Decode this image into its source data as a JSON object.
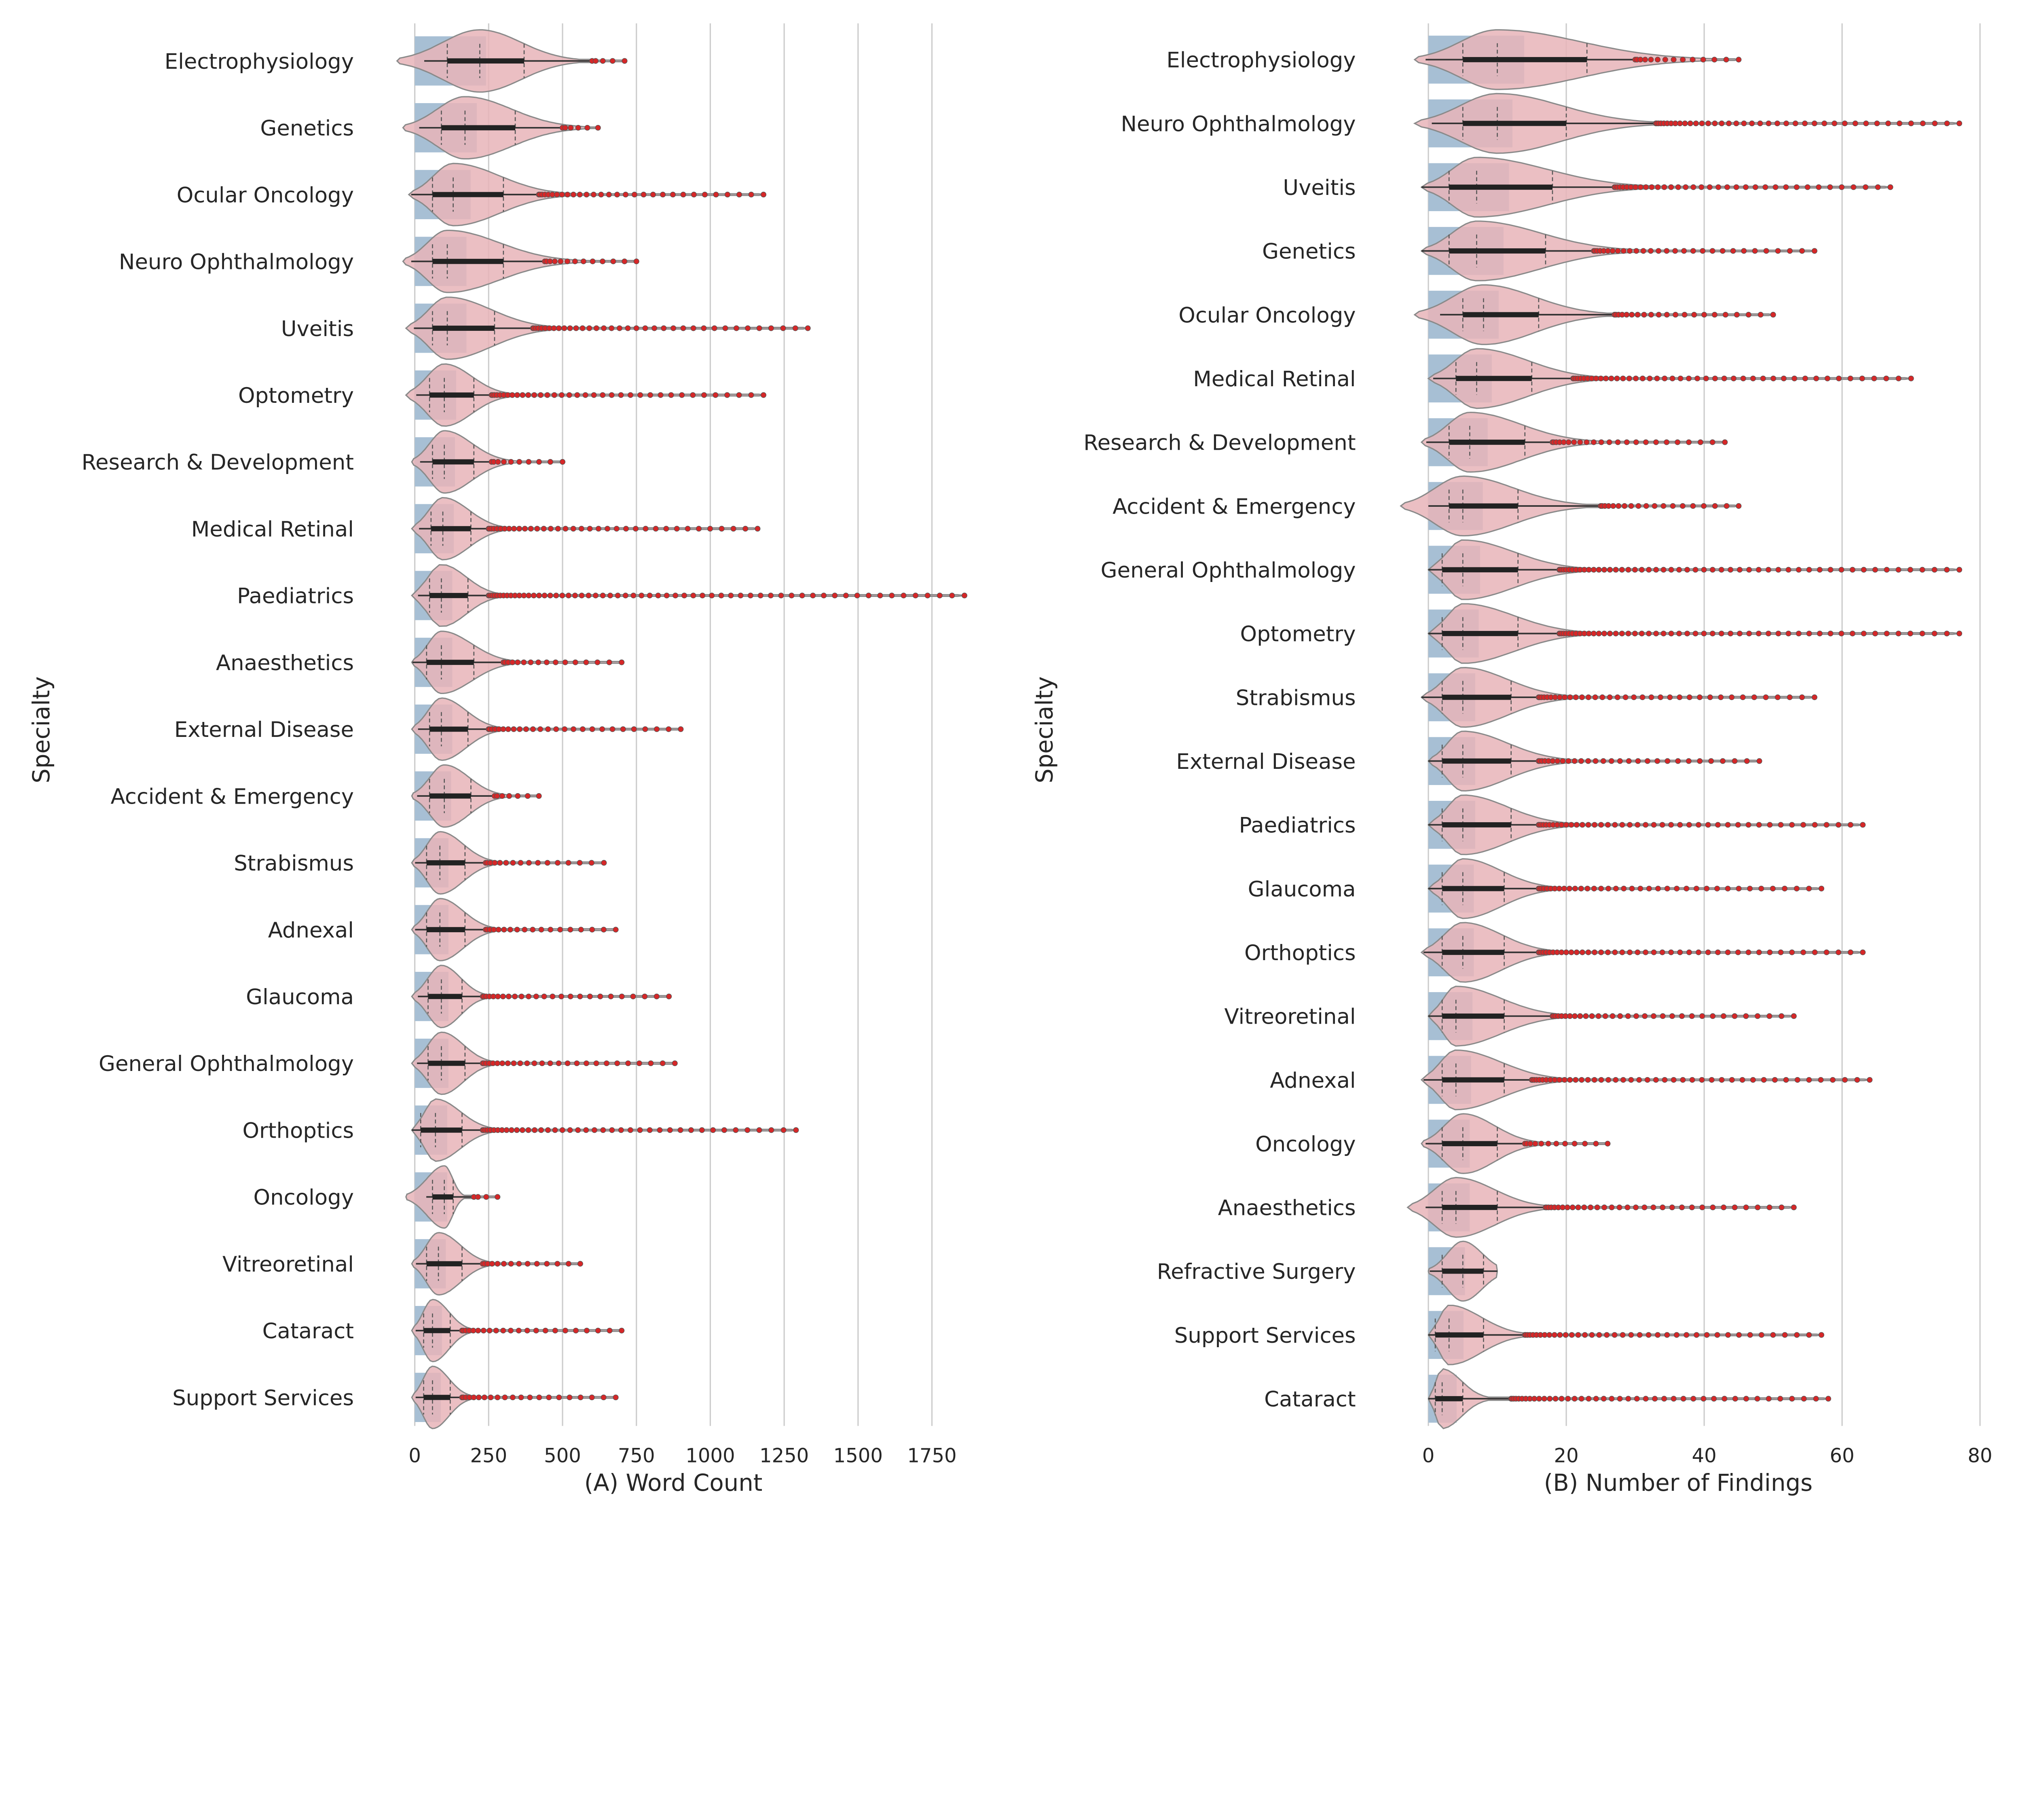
{
  "chart_data": [
    {
      "type": "bar+violin",
      "xlabel": "(A) Word Count",
      "ylabel": "Specialty",
      "xlim": [
        -60,
        1900
      ],
      "xticks": [
        0,
        250,
        500,
        750,
        1000,
        1250,
        1500,
        1750
      ],
      "grid": "vertical",
      "colors": {
        "bar": "#a7bfd4",
        "violin": "#e8b4b8",
        "outlier": "#d62728",
        "box": "#222222"
      },
      "fields": [
        "category",
        "mean",
        "q1",
        "median",
        "q3",
        "whisker_high",
        "max",
        "min"
      ],
      "rows": [
        [
          "Electrophysiology",
          241,
          110,
          220,
          370,
          600,
          710,
          -60
        ],
        [
          "Genetics",
          210,
          90,
          170,
          340,
          500,
          620,
          -40
        ],
        [
          "Ocular Oncology",
          189,
          60,
          130,
          300,
          420,
          1180,
          -20
        ],
        [
          "Neuro Ophthalmology",
          175,
          60,
          110,
          300,
          440,
          750,
          -40
        ],
        [
          "Uveitis",
          175,
          60,
          110,
          270,
          400,
          1330,
          -30
        ],
        [
          "Optometry",
          140,
          50,
          100,
          200,
          260,
          1180,
          -30
        ],
        [
          "Research & Development",
          136,
          60,
          100,
          200,
          260,
          500,
          -10
        ],
        [
          "Medical Retinal",
          132,
          55,
          95,
          190,
          250,
          1160,
          -10
        ],
        [
          "Paediatrics",
          127,
          50,
          90,
          180,
          250,
          1860,
          -10
        ],
        [
          "Anaesthetics",
          127,
          40,
          90,
          200,
          300,
          700,
          -10
        ],
        [
          "External Disease",
          127,
          50,
          90,
          180,
          250,
          900,
          -10
        ],
        [
          "Accident & Emergency",
          123,
          50,
          100,
          190,
          270,
          420,
          -10
        ],
        [
          "Strabismus",
          114,
          40,
          85,
          170,
          240,
          640,
          -10
        ],
        [
          "Adnexal",
          114,
          40,
          85,
          170,
          240,
          680,
          -10
        ],
        [
          "Glaucoma",
          114,
          45,
          90,
          160,
          230,
          860,
          -10
        ],
        [
          "General Ophthalmology",
          114,
          45,
          90,
          170,
          230,
          880,
          -10
        ],
        [
          "Orthoptics",
          110,
          20,
          70,
          160,
          230,
          1290,
          -10
        ],
        [
          "Oncology",
          110,
          60,
          100,
          130,
          200,
          280,
          -30
        ],
        [
          "Vitreoretinal",
          105,
          40,
          80,
          160,
          230,
          560,
          -10
        ],
        [
          "Cataract",
          92,
          30,
          60,
          120,
          160,
          700,
          -10
        ],
        [
          "Support Services",
          88,
          30,
          60,
          120,
          160,
          680,
          -10
        ]
      ]
    },
    {
      "type": "bar+violin",
      "xlabel": "(B) Number of Findings",
      "ylabel": "Specialty",
      "xlim": [
        -4,
        80
      ],
      "xticks": [
        0,
        20,
        40,
        60,
        80
      ],
      "grid": "vertical",
      "colors": {
        "bar": "#a7bfd4",
        "violin": "#e8b4b8",
        "outlier": "#d62728",
        "box": "#222222"
      },
      "fields": [
        "category",
        "mean",
        "q1",
        "median",
        "q3",
        "whisker_high",
        "max",
        "min"
      ],
      "rows": [
        [
          "Electrophysiology",
          13.9,
          5,
          10,
          23,
          30,
          45,
          -2
        ],
        [
          "Neuro Ophthalmology",
          12.2,
          5,
          10,
          20,
          33,
          77,
          -2
        ],
        [
          "Uveitis",
          11.7,
          3,
          7,
          18,
          27,
          67,
          -1
        ],
        [
          "Genetics",
          10.9,
          3,
          7,
          17,
          24,
          56,
          -1
        ],
        [
          "Ocular Oncology",
          10.2,
          5,
          8,
          16,
          27,
          50,
          -2
        ],
        [
          "Medical Retinal",
          9.2,
          4,
          7,
          15,
          21,
          70,
          0
        ],
        [
          "Research & Development",
          8.6,
          3,
          6,
          14,
          18,
          43,
          -1
        ],
        [
          "Accident & Emergency",
          7.9,
          3,
          5,
          13,
          25,
          45,
          -4
        ],
        [
          "General Ophthalmology",
          7.5,
          2,
          5,
          13,
          19,
          77,
          0
        ],
        [
          "Optometry",
          7.3,
          2,
          5,
          13,
          19,
          77,
          0
        ],
        [
          "Strabismus",
          6.8,
          2,
          5,
          12,
          16,
          56,
          -1
        ],
        [
          "External Disease",
          6.8,
          2,
          5,
          12,
          16,
          48,
          0
        ],
        [
          "Paediatrics",
          6.8,
          2,
          5,
          12,
          16,
          63,
          0
        ],
        [
          "Glaucoma",
          6.6,
          2,
          5,
          11,
          16,
          57,
          0
        ],
        [
          "Orthoptics",
          6.6,
          2,
          5,
          11,
          16,
          63,
          -1
        ],
        [
          "Vitreoretinal",
          6.4,
          2,
          4,
          11,
          18,
          53,
          0
        ],
        [
          "Adnexal",
          6.2,
          2,
          4,
          11,
          15,
          64,
          -1
        ],
        [
          "Oncology",
          6,
          2,
          5,
          10,
          14,
          26,
          -1
        ],
        [
          "Anaesthetics",
          6,
          2,
          4,
          10,
          17,
          53,
          -3
        ],
        [
          "Refractive Surgery",
          5.3,
          2,
          5,
          8,
          10,
          10,
          0
        ],
        [
          "Support Services",
          5.1,
          1,
          3,
          8,
          14,
          57,
          0
        ],
        [
          "Cataract",
          4.1,
          1,
          2,
          5,
          12,
          58,
          0
        ]
      ]
    }
  ]
}
